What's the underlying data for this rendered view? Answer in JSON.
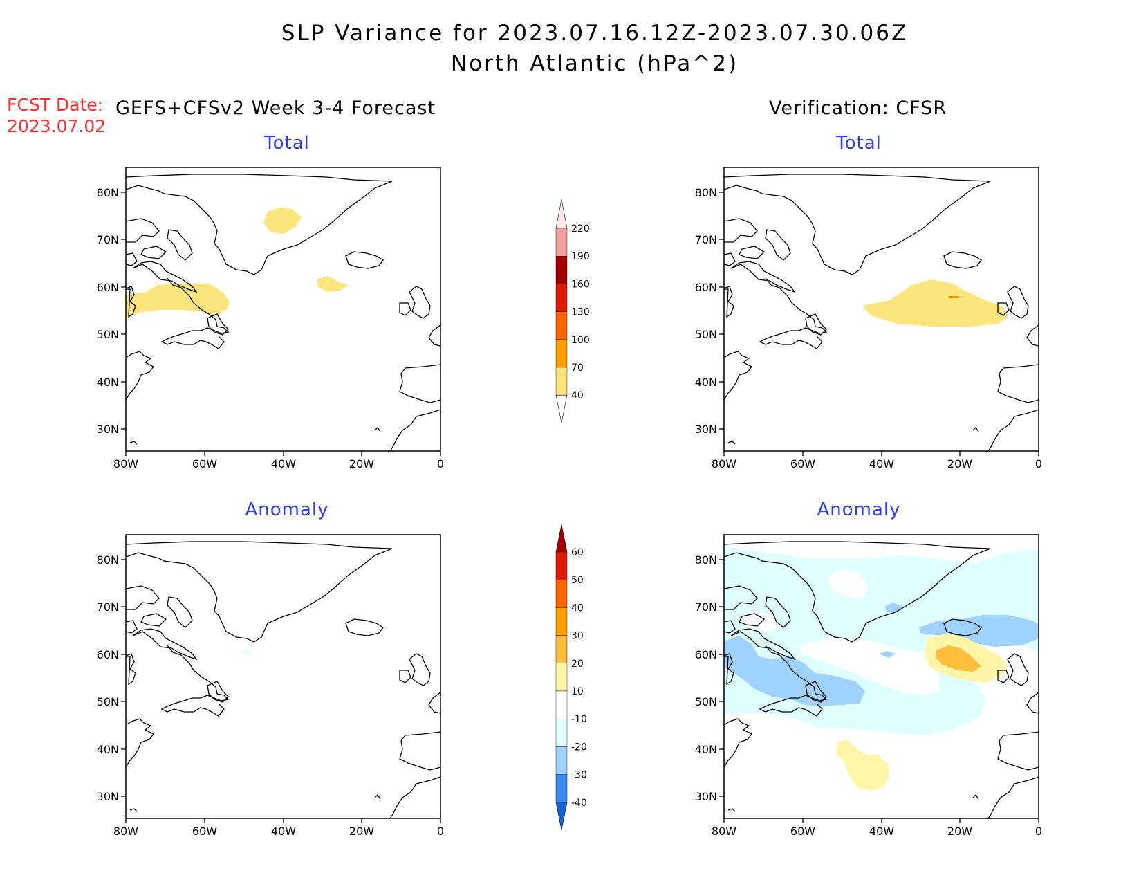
{
  "title": {
    "line1": "SLP Variance for 2023.07.16.12Z-2023.07.30.06Z",
    "line2": "North Atlantic (hPa^2)"
  },
  "forecast_date": {
    "label": "FCST Date:",
    "value": "2023.07.02"
  },
  "columns": {
    "left": "GEFS+CFSv2 Week 3-4 Forecast",
    "right": "Verification: CFSR"
  },
  "panels": [
    {
      "id": "forecast-total",
      "title": "Total"
    },
    {
      "id": "verification-total",
      "title": "Total"
    },
    {
      "id": "forecast-anomaly",
      "title": "Anomaly"
    },
    {
      "id": "verification-anomaly",
      "title": "Anomaly"
    }
  ],
  "axes": {
    "lat_ticks": [
      "80N",
      "70N",
      "60N",
      "50N",
      "40N",
      "30N"
    ],
    "lon_ticks": [
      "80W",
      "60W",
      "40W",
      "20W",
      "0"
    ]
  },
  "colorbars": {
    "total": {
      "levels": [
        "220",
        "190",
        "160",
        "130",
        "100",
        "70",
        "40"
      ],
      "colors": [
        "#fde7e4",
        "#f2a0a0",
        "#a50000",
        "#e01a00",
        "#ff6400",
        "#ffa000",
        "#fde57d"
      ]
    },
    "anomaly": {
      "levels": [
        "60",
        "50",
        "40",
        "30",
        "20",
        "10",
        "-10",
        "-20",
        "-30",
        "-40"
      ],
      "colors": [
        "#a50000",
        "#e01a00",
        "#ff6400",
        "#ffa000",
        "#ffbf3c",
        "#fff5a6",
        "#ffffff",
        "#e0ffff",
        "#a0d2ff",
        "#3c8cf0",
        "#1064d8"
      ]
    }
  },
  "colors": {
    "title_blue": "#2a3bff",
    "fcst_red": "#ff2a2a"
  }
}
